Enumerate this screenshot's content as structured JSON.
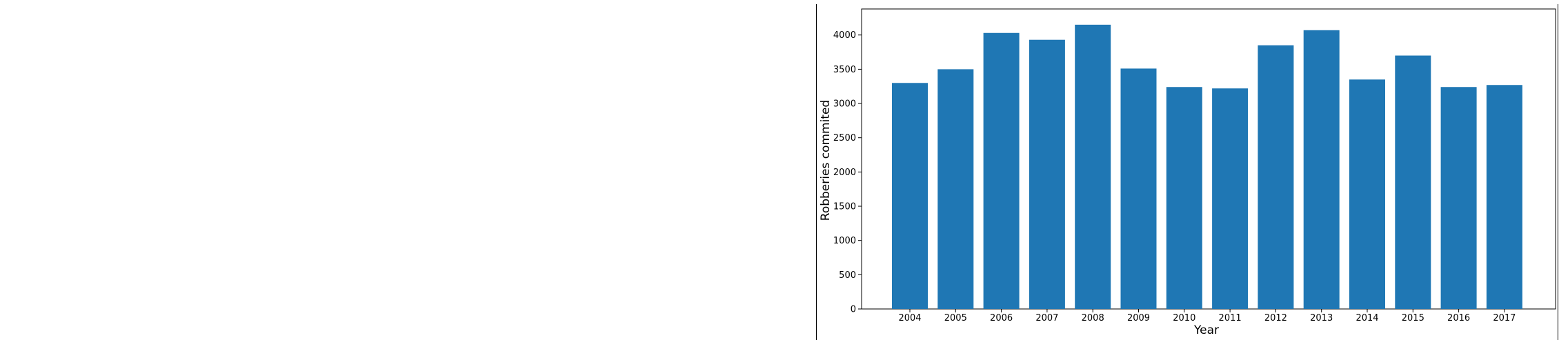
{
  "chart_data": {
    "type": "bar",
    "title": "",
    "xlabel": "Year",
    "ylabel": "Robberies commited",
    "categories": [
      "2004",
      "2005",
      "2006",
      "2007",
      "2008",
      "2009",
      "2010",
      "2011",
      "2012",
      "2013",
      "2014",
      "2015",
      "2016",
      "2017"
    ],
    "values": [
      3300,
      3500,
      4030,
      3930,
      4150,
      3510,
      3240,
      3220,
      3850,
      4070,
      3350,
      3700,
      3240,
      3270
    ],
    "ylim": [
      0,
      4380
    ],
    "yticks": [
      0,
      500,
      1000,
      1500,
      2000,
      2500,
      3000,
      3500,
      4000
    ],
    "grid": false,
    "legend": "none",
    "colors": {
      "bar": "#1f77b4",
      "axis": "#000000",
      "background": "#ffffff"
    }
  }
}
